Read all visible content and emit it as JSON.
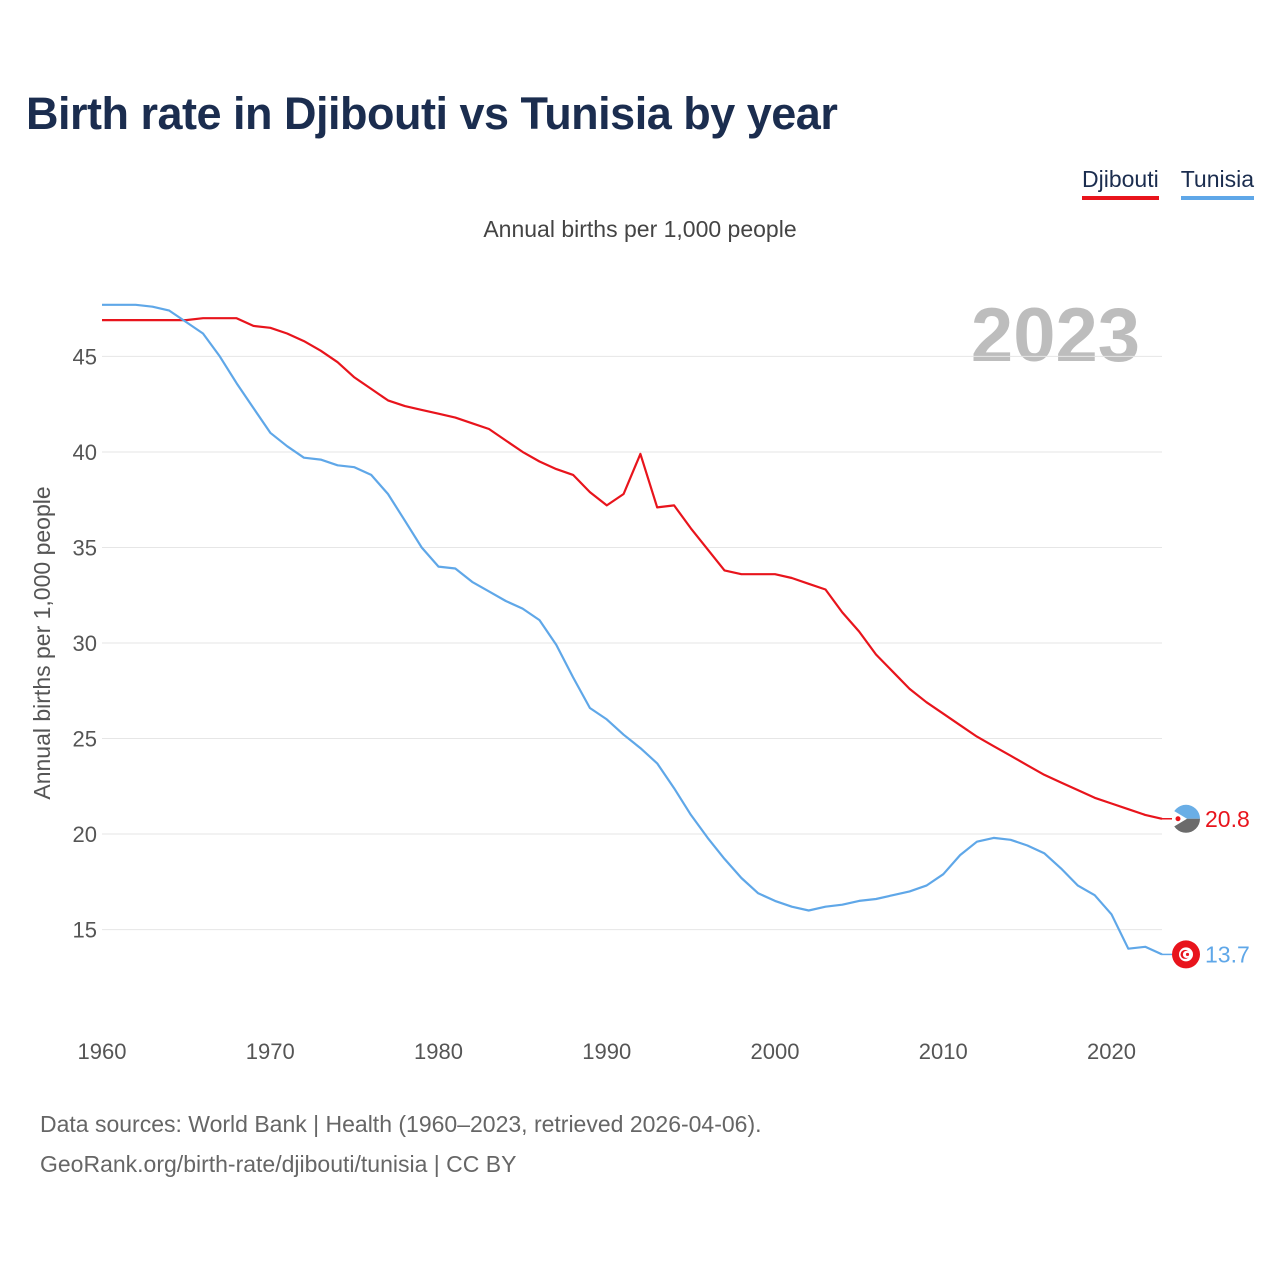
{
  "title": "Birth rate in Djibouti vs Tunisia by year",
  "legend": [
    {
      "name": "Djibouti",
      "color": "#e8141c"
    },
    {
      "name": "Tunisia",
      "color": "#5fa7e8"
    }
  ],
  "footer": {
    "line1": "Data sources: World Bank | Health (1960–2023, retrieved 2026-04-06).",
    "line2": "GeoRank.org/birth-rate/djibouti/tunisia | CC BY"
  },
  "chart_data": {
    "type": "line",
    "title": "Birth rate in Djibouti vs Tunisia by year",
    "subtitle": "Annual births per 1,000 people",
    "ylabel": "Annual births per 1,000 people",
    "xlabel": "",
    "year_label": "2023",
    "xlim": [
      1960,
      2023
    ],
    "ylim": [
      11,
      49
    ],
    "x_ticks": [
      1960,
      1970,
      1980,
      1990,
      2000,
      2010,
      2020
    ],
    "y_ticks": [
      15,
      20,
      25,
      30,
      35,
      40,
      45
    ],
    "grid": true,
    "x": [
      1960,
      1961,
      1962,
      1963,
      1964,
      1965,
      1966,
      1967,
      1968,
      1969,
      1970,
      1971,
      1972,
      1973,
      1974,
      1975,
      1976,
      1977,
      1978,
      1979,
      1980,
      1981,
      1982,
      1983,
      1984,
      1985,
      1986,
      1987,
      1988,
      1989,
      1990,
      1991,
      1992,
      1993,
      1994,
      1995,
      1996,
      1997,
      1998,
      1999,
      2000,
      2001,
      2002,
      2003,
      2004,
      2005,
      2006,
      2007,
      2008,
      2009,
      2010,
      2011,
      2012,
      2013,
      2014,
      2015,
      2016,
      2017,
      2018,
      2019,
      2020,
      2021,
      2022,
      2023
    ],
    "series": [
      {
        "name": "Djibouti",
        "color": "#e8141c",
        "end_label": "20.8",
        "values": [
          46.9,
          46.9,
          46.9,
          46.9,
          46.9,
          46.9,
          47.0,
          47.0,
          47.0,
          46.6,
          46.5,
          46.2,
          45.8,
          45.3,
          44.7,
          43.9,
          43.3,
          42.7,
          42.4,
          42.2,
          42.0,
          41.8,
          41.5,
          41.2,
          40.6,
          40.0,
          39.5,
          39.1,
          38.8,
          37.9,
          37.2,
          37.8,
          39.9,
          37.1,
          37.2,
          36.0,
          34.9,
          33.8,
          33.6,
          33.6,
          33.6,
          33.4,
          33.1,
          32.8,
          31.6,
          30.6,
          29.4,
          28.5,
          27.6,
          26.9,
          26.3,
          25.7,
          25.1,
          24.6,
          24.1,
          23.6,
          23.1,
          22.7,
          22.3,
          21.9,
          21.6,
          21.3,
          21.0,
          20.8
        ]
      },
      {
        "name": "Tunisia",
        "color": "#5fa7e8",
        "end_label": "13.7",
        "values": [
          47.7,
          47.7,
          47.7,
          47.6,
          47.4,
          46.8,
          46.2,
          45.0,
          43.6,
          42.3,
          41.0,
          40.3,
          39.7,
          39.6,
          39.3,
          39.2,
          38.8,
          37.8,
          36.4,
          35.0,
          34.0,
          33.9,
          33.2,
          32.7,
          32.2,
          31.8,
          31.2,
          29.9,
          28.2,
          26.6,
          26.0,
          25.2,
          24.5,
          23.7,
          22.4,
          21.0,
          19.8,
          18.7,
          17.7,
          16.9,
          16.5,
          16.2,
          16.0,
          16.2,
          16.3,
          16.5,
          16.6,
          16.8,
          17.0,
          17.3,
          17.9,
          18.9,
          19.6,
          19.8,
          19.7,
          19.4,
          19.0,
          18.2,
          17.3,
          16.8,
          15.8,
          14.0,
          14.1,
          13.7
        ]
      }
    ]
  }
}
